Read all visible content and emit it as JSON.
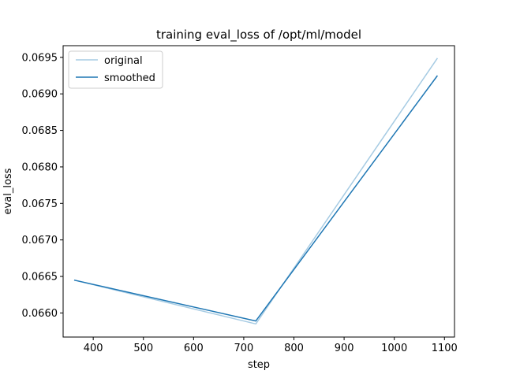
{
  "chart_data": {
    "type": "line",
    "title": "training eval_loss of /opt/ml/model",
    "xlabel": "step",
    "ylabel": "eval_loss",
    "xlim": [
      340,
      1120
    ],
    "ylim": [
      0.06567,
      0.06966
    ],
    "xticks": [
      400,
      500,
      600,
      700,
      800,
      900,
      1000,
      1100
    ],
    "yticks": [
      0.066,
      0.0665,
      0.067,
      0.0675,
      0.068,
      0.0685,
      0.069,
      0.0695
    ],
    "ytick_labels": [
      "0.0660",
      "0.0665",
      "0.0670",
      "0.0675",
      "0.0680",
      "0.0685",
      "0.0690",
      "0.0695"
    ],
    "grid": false,
    "legend_position": "upper-left",
    "series": [
      {
        "name": "original",
        "color": "#a6cbe3",
        "x": [
          362,
          724,
          1086
        ],
        "y": [
          0.06645,
          0.06585,
          0.06949
        ]
      },
      {
        "name": "smoothed",
        "color": "#1f77b4",
        "x": [
          362,
          724,
          1086
        ],
        "y": [
          0.06645,
          0.06589,
          0.06925
        ]
      }
    ]
  }
}
